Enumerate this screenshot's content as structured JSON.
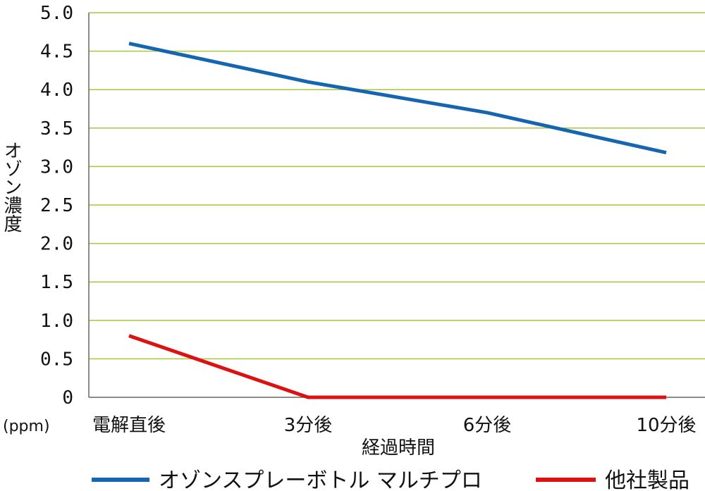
{
  "chart_data": {
    "type": "line",
    "title": "",
    "xlabel": "経過時間",
    "ylabel": "オゾン濃度",
    "yunit": "(ppm)",
    "categories": [
      "電解直後",
      "3分後",
      "6分後",
      "10分後"
    ],
    "ylim": [
      0,
      5.0
    ],
    "yticks": [
      "0",
      "0.5",
      "1.0",
      "1.5",
      "2.0",
      "2.5",
      "3.0",
      "3.5",
      "4.0",
      "4.5",
      "5.0"
    ],
    "grid": true,
    "legend_position": "bottom",
    "series": [
      {
        "name": "オゾンスプレーボトル マルチプロ",
        "color": "#1565b0",
        "values": [
          4.6,
          4.1,
          3.7,
          3.18
        ]
      },
      {
        "name": "他社製品",
        "color": "#dd1111",
        "values": [
          0.8,
          0,
          0,
          0
        ]
      }
    ],
    "colors": {
      "grid": "#a6c837",
      "axis": "#666666"
    }
  }
}
